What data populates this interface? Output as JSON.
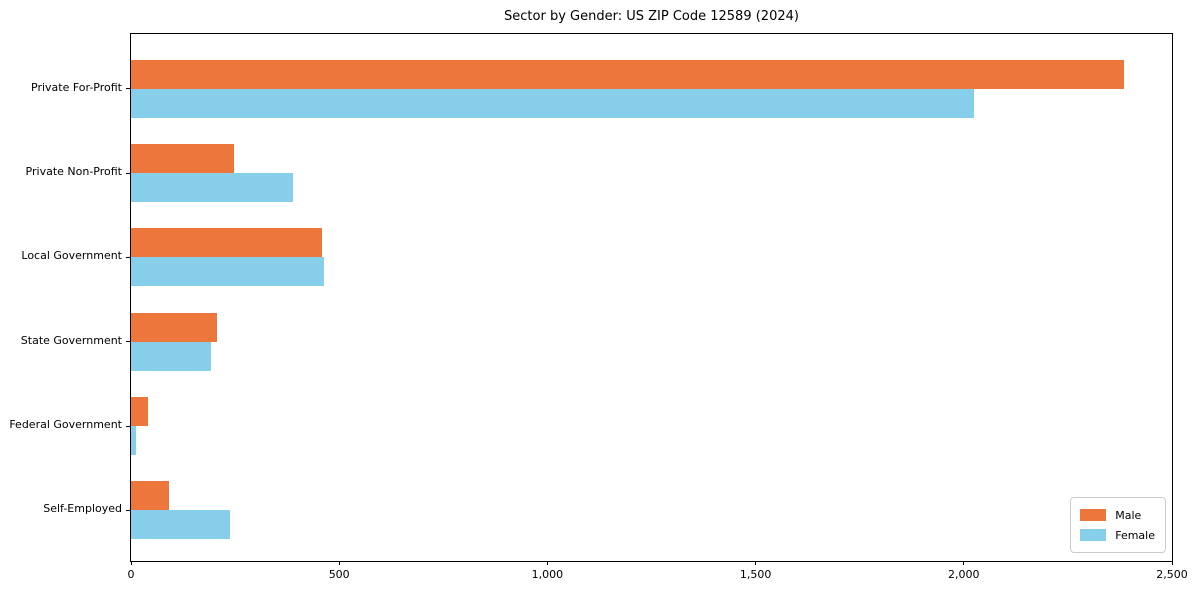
{
  "title": "Sector by Gender: US ZIP Code 12589 (2024)",
  "chart_data": {
    "type": "bar",
    "orientation": "horizontal",
    "title": "Sector by Gender: US ZIP Code 12589 (2024)",
    "xlabel": "",
    "ylabel": "",
    "categories": [
      "Private For-Profit",
      "Private Non-Profit",
      "Local Government",
      "State Government",
      "Federal Government",
      "Self-Employed"
    ],
    "series": [
      {
        "name": "Male",
        "color": "#EC763B",
        "values": [
          2385,
          248,
          459,
          207,
          41,
          91
        ]
      },
      {
        "name": "Female",
        "color": "#87CEEB",
        "values": [
          2025,
          388,
          464,
          192,
          12,
          238
        ]
      }
    ],
    "xlim": [
      0,
      2500
    ],
    "x_ticks": [
      0,
      500,
      1000,
      1500,
      2000,
      2500
    ],
    "x_tick_labels": [
      "0",
      "500",
      "1,000",
      "1,500",
      "2,000",
      "2,500"
    ],
    "grid": false,
    "legend": {
      "position": "lower right",
      "entries": [
        "Male",
        "Female"
      ]
    },
    "colors": {
      "male": "#EC763B",
      "female": "#87CEEB",
      "spine": "#000000",
      "legend_border": "#cccccc"
    }
  }
}
